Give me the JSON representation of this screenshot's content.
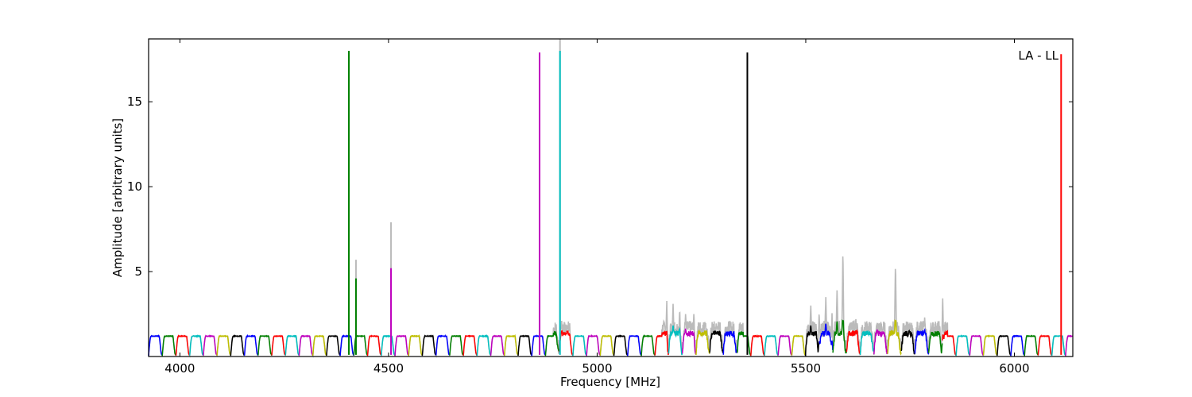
{
  "chart_data": {
    "type": "line",
    "annotation": "LA - LL",
    "xlabel": "Frequency [MHz]",
    "ylabel": "Amplitude [arbitrary units]",
    "xlim": [
      3925,
      6140
    ],
    "ylim": [
      0.0,
      18.7
    ],
    "xticks": [
      4000,
      4500,
      5000,
      5500,
      6000
    ],
    "yticks": [
      5,
      10,
      15
    ],
    "grid": false,
    "band": {
      "start": 3925,
      "width": 32.8,
      "count": 68,
      "baseline": 1.2
    },
    "colors": [
      "#0000ff",
      "#008000",
      "#ff0000",
      "#00bfbf",
      "#bf00bf",
      "#bfbf00",
      "#000000"
    ],
    "background_color": "#bbbbbb",
    "spikes": [
      {
        "x": 4405,
        "y": 18.0,
        "color": "#008000"
      },
      {
        "x": 4422,
        "y": 4.6,
        "color": "#008000",
        "bg": 5.7
      },
      {
        "x": 4506,
        "y": 5.2,
        "color": "#bf00bf",
        "bg": 7.9
      },
      {
        "x": 4862,
        "y": 17.9,
        "color": "#bf00bf"
      },
      {
        "x": 4911,
        "y": 18.0,
        "color": "#00bfbf",
        "bg": 18.7
      },
      {
        "x": 5360,
        "y": 17.9,
        "color": "#000000"
      },
      {
        "x": 6112,
        "y": 17.8,
        "color": "#ff0000"
      }
    ],
    "noise_regions": [
      {
        "from": 5155,
        "to": 5350,
        "peaks": [
          [
            5167,
            3.9
          ],
          [
            5182,
            3.1
          ],
          [
            5198,
            3.0
          ],
          [
            5212,
            2.5
          ],
          [
            5232,
            3.1
          ],
          [
            5258,
            2.1
          ],
          [
            5288,
            1.8
          ],
          [
            5320,
            1.6
          ]
        ]
      },
      {
        "from": 5500,
        "to": 5840,
        "peaks": [
          [
            5512,
            3.0
          ],
          [
            5532,
            3.8
          ],
          [
            5548,
            3.5
          ],
          [
            5563,
            3.6
          ],
          [
            5575,
            3.9
          ],
          [
            5589,
            6.3
          ],
          [
            5620,
            2.2
          ],
          [
            5660,
            2.3
          ],
          [
            5700,
            2.0
          ],
          [
            5715,
            5.5
          ],
          [
            5785,
            2.3
          ],
          [
            5828,
            4.6
          ]
        ]
      },
      {
        "from": 4895,
        "to": 4935,
        "peaks": [
          [
            4915,
            2.1
          ],
          [
            4928,
            1.9
          ]
        ]
      }
    ]
  }
}
